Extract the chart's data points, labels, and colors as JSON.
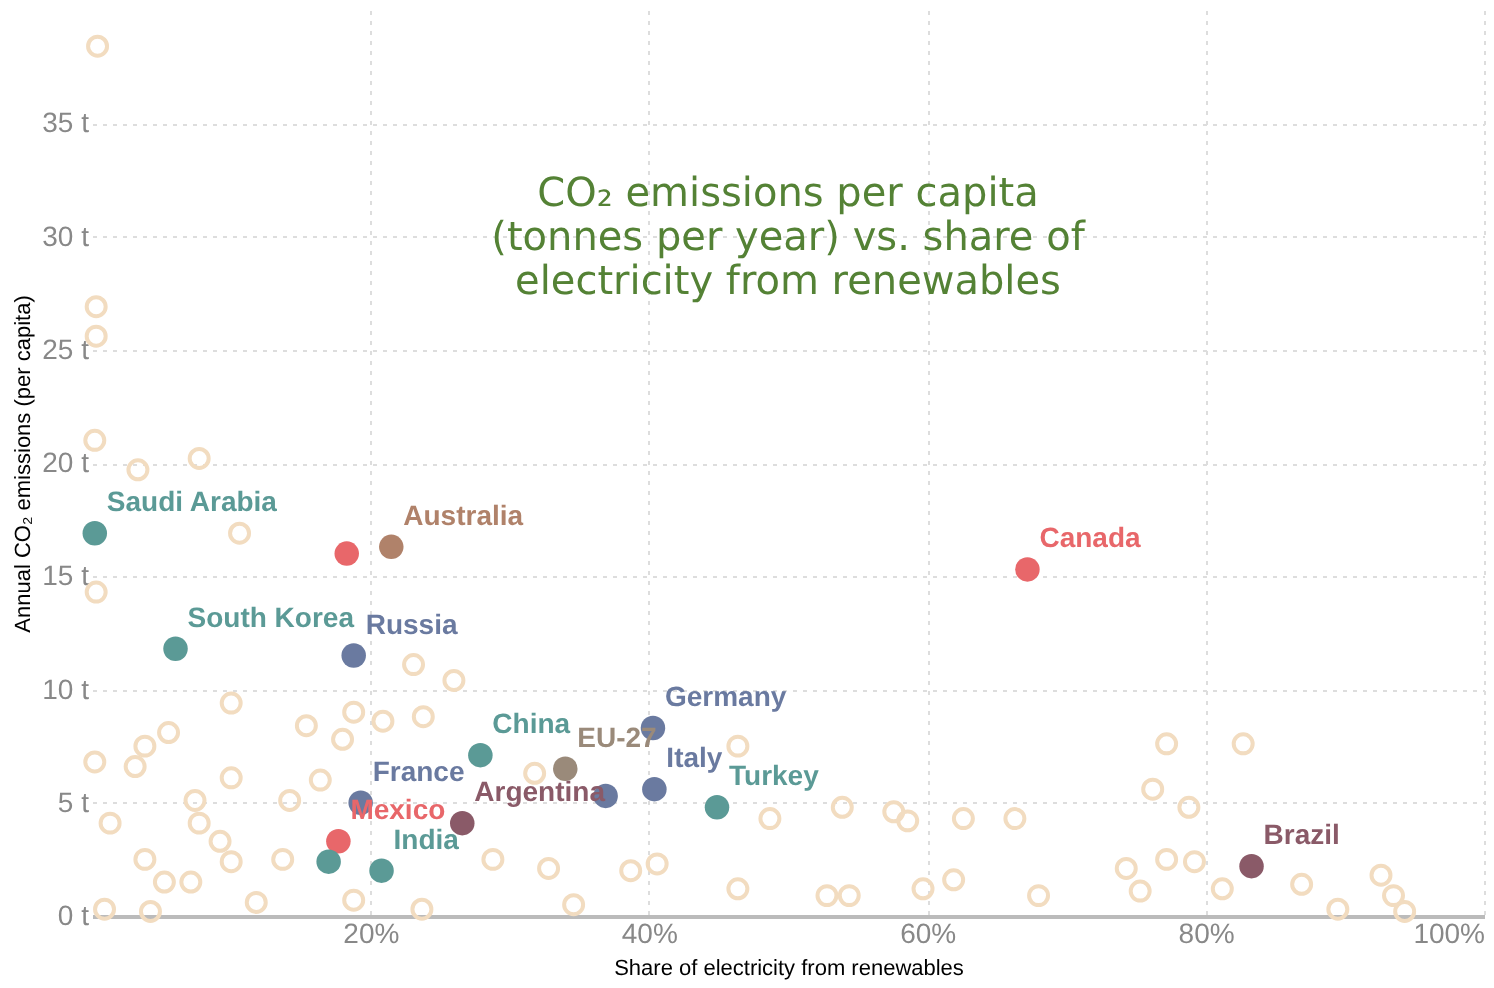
{
  "chart_data": {
    "type": "scatter",
    "title": "CO₂ emissions per capita (tonnes per year) vs. share of electricity from renewables",
    "xlabel": "Share of electricity from renewables",
    "ylabel": "Annual CO₂ emissions (per capita)",
    "xlim": [
      0,
      100
    ],
    "ylim": [
      0,
      40
    ],
    "xticks": [
      {
        "value": 20,
        "label": "20%"
      },
      {
        "value": 40,
        "label": "40%"
      },
      {
        "value": 60,
        "label": "60%"
      },
      {
        "value": 80,
        "label": "80%"
      },
      {
        "value": 100,
        "label": "100%"
      }
    ],
    "yticks": [
      {
        "value": 0,
        "label": "0 t"
      },
      {
        "value": 5,
        "label": "5 t"
      },
      {
        "value": 10,
        "label": "10 t"
      },
      {
        "value": 15,
        "label": "15 t"
      },
      {
        "value": 20,
        "label": "20 t"
      },
      {
        "value": 25,
        "label": "25 t"
      },
      {
        "value": 30,
        "label": "30 t"
      },
      {
        "value": 35,
        "label": "35 t"
      }
    ],
    "grid": true,
    "marker": "circle",
    "series": [
      {
        "color": "#f2dcc0",
        "x": [
          0.4,
          0.3,
          0.3,
          0.2,
          3.3,
          7.7,
          10.6,
          0.3,
          23.1,
          26.0,
          10.0,
          18.8,
          20.9,
          23.8,
          15.4,
          5.5,
          3.8,
          18.0,
          0.2,
          3.1,
          10.0,
          16.4,
          31.8,
          7.4,
          14.2,
          1.3,
          7.7,
          9.2,
          3.8,
          13.7,
          10.0,
          28.8,
          5.2,
          7.1,
          32.8,
          38.7,
          40.6,
          0.9,
          4.2,
          11.8,
          18.8,
          23.7,
          34.6,
          46.4,
          77.2,
          82.7,
          76.2,
          78.8,
          53.9,
          57.6,
          58.6,
          62.6,
          66.3,
          48.7,
          74.3,
          77.2,
          79.2,
          86.9,
          92.6,
          93.5,
          46.4,
          52.8,
          54.4,
          59.7,
          61.9,
          68.0,
          75.3,
          81.2,
          89.5,
          94.3
        ],
        "values": [
          38.4,
          26.9,
          25.6,
          21.0,
          19.7,
          20.2,
          16.9,
          14.3,
          11.1,
          10.4,
          9.4,
          9.0,
          8.6,
          8.8,
          8.4,
          8.1,
          7.5,
          7.8,
          6.8,
          6.6,
          6.1,
          6.0,
          6.3,
          5.1,
          5.1,
          4.1,
          4.1,
          3.3,
          2.5,
          2.5,
          2.4,
          2.5,
          1.5,
          1.5,
          2.1,
          2.0,
          2.3,
          0.3,
          0.2,
          0.6,
          0.7,
          0.3,
          0.5,
          7.5,
          7.6,
          7.6,
          5.6,
          4.8,
          4.8,
          4.6,
          4.2,
          4.3,
          4.3,
          4.3,
          2.1,
          2.5,
          2.4,
          1.4,
          1.8,
          0.9,
          1.2,
          0.9,
          0.9,
          1.2,
          1.6,
          0.9,
          1.1,
          1.2,
          0.3,
          0.2
        ]
      },
      {
        "x": [
          0.2,
          21.5,
          18.3,
          6.0,
          18.8,
          40.3,
          27.9,
          34.0,
          40.4,
          36.9,
          19.3,
          44.9,
          67.2,
          26.6,
          17.7,
          17.0,
          20.8,
          83.3
        ],
        "values": [
          16.9,
          16.3,
          16.0,
          11.8,
          11.5,
          8.3,
          7.1,
          6.5,
          5.6,
          5.3,
          5.0,
          4.8,
          15.3,
          4.1,
          3.3,
          2.4,
          2.0,
          2.2
        ],
        "colors": [
          "#5b9a96",
          "#b0826a",
          "#e8676a",
          "#5b9a96",
          "#6a7aa0",
          "#6a7aa0",
          "#5b9a96",
          "#9a8a7a",
          "#6a7aa0",
          "#6a7aa0",
          "#6a7aa0",
          "#5b9a96",
          "#e8676a",
          "#8a5a68",
          "#e8676a",
          "#5b9a96",
          "#5b9a96",
          "#8a5a68"
        ]
      }
    ],
    "annotations": [
      {
        "text": "Saudi Arabia",
        "x": 0.2,
        "y": 16.9
      },
      {
        "text": "Australia",
        "x": 21.5,
        "y": 16.3
      },
      {
        "text": "South Korea",
        "x": 6.0,
        "y": 11.8
      },
      {
        "text": "Russia",
        "x": 18.8,
        "y": 11.5
      },
      {
        "text": "Germany",
        "x": 40.3,
        "y": 8.3
      },
      {
        "text": "China",
        "x": 27.9,
        "y": 7.1
      },
      {
        "text": "EU-27",
        "x": 34.0,
        "y": 6.5
      },
      {
        "text": "Italy",
        "x": 40.4,
        "y": 5.6
      },
      {
        "text": "France",
        "x": 19.3,
        "y": 5.0
      },
      {
        "text": "Turkey",
        "x": 44.9,
        "y": 4.8
      },
      {
        "text": "Canada",
        "x": 67.2,
        "y": 15.3
      },
      {
        "text": "Argentina",
        "x": 26.6,
        "y": 4.1
      },
      {
        "text": "Mexico",
        "x": 17.7,
        "y": 3.3
      },
      {
        "text": "India",
        "x": 20.8,
        "y": 2.0
      },
      {
        "text": "Brazil",
        "x": 83.3,
        "y": 2.2
      }
    ]
  }
}
